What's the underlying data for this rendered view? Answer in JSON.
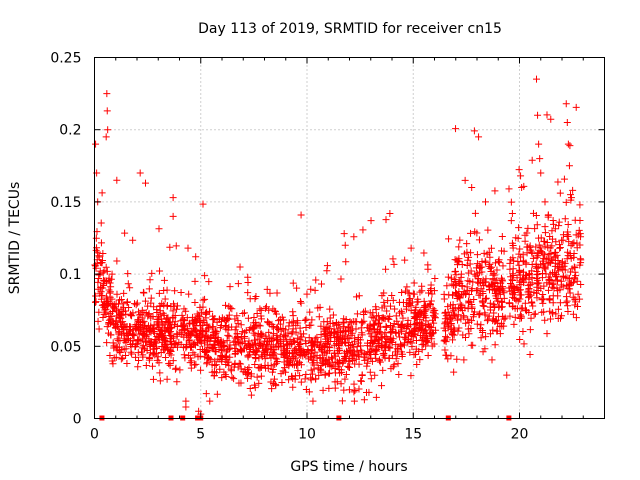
{
  "chart_data": {
    "type": "scatter",
    "title": "Day 113 of 2019, SRMTID for receiver cn15",
    "xlabel": "GPS time / hours",
    "ylabel": "SRMTID / TECUs",
    "xlim": [
      0,
      24
    ],
    "ylim": [
      0,
      0.25
    ],
    "grid": true,
    "marker": "+",
    "marker_color": "#ff0000",
    "x_ticks": [
      {
        "value": 0,
        "label": "0"
      },
      {
        "value": 5,
        "label": "5"
      },
      {
        "value": 10,
        "label": "10"
      },
      {
        "value": 15,
        "label": "15"
      },
      {
        "value": 20,
        "label": "20"
      }
    ],
    "y_ticks": [
      {
        "value": 0,
        "label": "0"
      },
      {
        "value": 0.05,
        "label": "0.05"
      },
      {
        "value": 0.1,
        "label": "0.1"
      },
      {
        "value": 0.15,
        "label": "0.15"
      },
      {
        "value": 0.2,
        "label": "0.2"
      },
      {
        "value": 0.25,
        "label": "0.25"
      }
    ],
    "series": [
      {
        "name": "SRMTID",
        "trend": [
          [
            0.0,
            0.105
          ],
          [
            0.3,
            0.095
          ],
          [
            0.5,
            0.08
          ],
          [
            1.0,
            0.065
          ],
          [
            2.0,
            0.06
          ],
          [
            3.0,
            0.058
          ],
          [
            4.0,
            0.057
          ],
          [
            5.0,
            0.056
          ],
          [
            6.0,
            0.052
          ],
          [
            7.0,
            0.05
          ],
          [
            8.0,
            0.05
          ],
          [
            9.0,
            0.048
          ],
          [
            10.0,
            0.047
          ],
          [
            11.0,
            0.048
          ],
          [
            12.0,
            0.05
          ],
          [
            13.0,
            0.052
          ],
          [
            14.0,
            0.058
          ],
          [
            15.0,
            0.065
          ],
          [
            16.0,
            0.068
          ],
          [
            16.5,
            0.06
          ],
          [
            17.0,
            0.085
          ],
          [
            18.0,
            0.09
          ],
          [
            19.0,
            0.085
          ],
          [
            20.0,
            0.09
          ],
          [
            21.0,
            0.1
          ],
          [
            22.0,
            0.105
          ],
          [
            23.0,
            0.1
          ]
        ],
        "spread": [
          [
            0.0,
            0.03
          ],
          [
            1.0,
            0.02
          ],
          [
            3.0,
            0.02
          ],
          [
            6.0,
            0.02
          ],
          [
            10.0,
            0.02
          ],
          [
            14.0,
            0.022
          ],
          [
            16.5,
            0.025
          ],
          [
            20.0,
            0.03
          ],
          [
            23.0,
            0.035
          ]
        ],
        "coverage": [
          [
            0.0,
            16.05
          ],
          [
            16.45,
            19.35
          ],
          [
            19.5,
            22.9
          ]
        ],
        "points_per_hour": 110,
        "highlights": [
          {
            "x": 0.58,
            "y": 0.225
          },
          {
            "x": 0.6,
            "y": 0.213
          },
          {
            "x": 0.62,
            "y": 0.2
          },
          {
            "x": 0.55,
            "y": 0.195
          },
          {
            "x": 0.05,
            "y": 0.19
          },
          {
            "x": 0.1,
            "y": 0.17
          },
          {
            "x": 0.15,
            "y": 0.15
          },
          {
            "x": 1.05,
            "y": 0.165
          },
          {
            "x": 2.15,
            "y": 0.17
          },
          {
            "x": 2.4,
            "y": 0.163
          },
          {
            "x": 3.7,
            "y": 0.153
          },
          {
            "x": 3.7,
            "y": 0.14
          },
          {
            "x": 4.4,
            "y": 0.118
          },
          {
            "x": 11.75,
            "y": 0.128
          },
          {
            "x": 11.8,
            "y": 0.12
          },
          {
            "x": 13.9,
            "y": 0.142
          },
          {
            "x": 14.9,
            "y": 0.118
          },
          {
            "x": 17.75,
            "y": 0.16
          },
          {
            "x": 18.4,
            "y": 0.15
          },
          {
            "x": 20.05,
            "y": 0.168
          },
          {
            "x": 20.1,
            "y": 0.16
          },
          {
            "x": 20.8,
            "y": 0.235
          },
          {
            "x": 20.85,
            "y": 0.21
          },
          {
            "x": 20.9,
            "y": 0.19
          },
          {
            "x": 20.95,
            "y": 0.18
          },
          {
            "x": 21.0,
            "y": 0.17
          },
          {
            "x": 21.2,
            "y": 0.15
          },
          {
            "x": 22.2,
            "y": 0.218
          },
          {
            "x": 22.25,
            "y": 0.205
          },
          {
            "x": 22.3,
            "y": 0.19
          },
          {
            "x": 22.35,
            "y": 0.175
          },
          {
            "x": 22.5,
            "y": 0.158
          },
          {
            "x": 22.4,
            "y": 0.155
          },
          {
            "x": 4.9,
            "y": 0.005
          },
          {
            "x": 5.0,
            "y": 0.003
          },
          {
            "x": 4.3,
            "y": 0.012
          },
          {
            "x": 4.3,
            "y": 0.008
          },
          {
            "x": 12.8,
            "y": 0.018
          },
          {
            "x": 12.7,
            "y": 0.013
          },
          {
            "x": 19.4,
            "y": 0.03
          }
        ]
      }
    ],
    "baseline_markers_x": [
      0.35,
      3.6,
      4.15,
      4.85,
      5.0,
      11.5,
      16.65,
      19.5
    ]
  }
}
